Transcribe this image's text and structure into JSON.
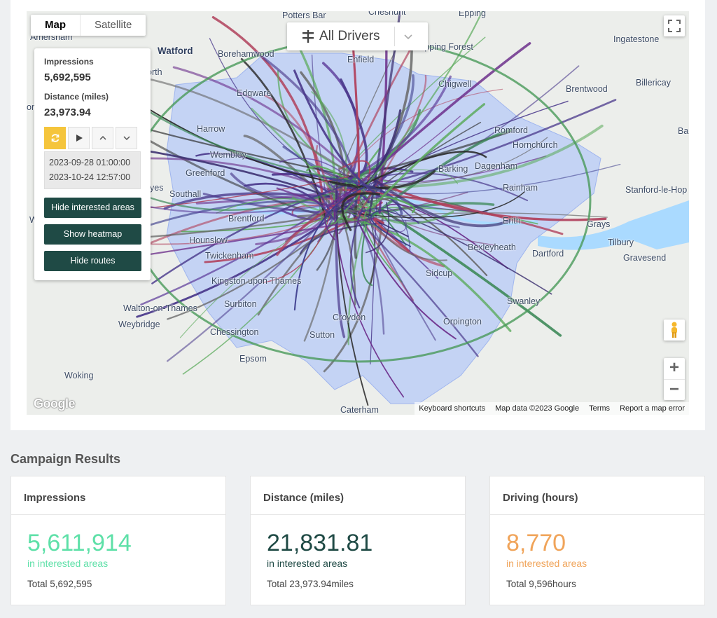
{
  "map": {
    "map_type_buttons": [
      "Map",
      "Satellite"
    ],
    "drivers_selector": "All Drivers",
    "places": [
      {
        "name": "Potters Bar",
        "big": false
      },
      {
        "name": "Cheshunt",
        "big": false
      },
      {
        "name": "Epping",
        "big": false
      },
      {
        "name": "Watford",
        "big": true
      },
      {
        "name": "Borehamwood",
        "big": false
      },
      {
        "name": "Enfield",
        "big": false
      },
      {
        "name": "Epping Forest",
        "big": false
      },
      {
        "name": "Ingatestone",
        "big": false
      },
      {
        "name": "Amersham",
        "big": false
      },
      {
        "name": "Edgware",
        "big": false
      },
      {
        "name": "Chigwell",
        "big": false
      },
      {
        "name": "Brentwood",
        "big": false
      },
      {
        "name": "Billericay",
        "big": false
      },
      {
        "name": "Harrow",
        "big": false
      },
      {
        "name": "Romford",
        "big": false
      },
      {
        "name": "Hornchurch",
        "big": false
      },
      {
        "name": "Wembley",
        "big": false
      },
      {
        "name": "Greenford",
        "big": false
      },
      {
        "name": "Barking",
        "big": false
      },
      {
        "name": "Dagenham",
        "big": false
      },
      {
        "name": "Southall",
        "big": false
      },
      {
        "name": "Rainham",
        "big": false
      },
      {
        "name": "Stanford-le-Hop",
        "big": false
      },
      {
        "name": "Brentford",
        "big": false
      },
      {
        "name": "Erith",
        "big": false
      },
      {
        "name": "Grays",
        "big": false
      },
      {
        "name": "Tilbury",
        "big": false
      },
      {
        "name": "Hounslow",
        "big": false
      },
      {
        "name": "Twickenham",
        "big": false
      },
      {
        "name": "Bexleyheath",
        "big": false
      },
      {
        "name": "Dartford",
        "big": false
      },
      {
        "name": "Gravesend",
        "big": false
      },
      {
        "name": "Kingston upon Thames",
        "big": false
      },
      {
        "name": "Sidcup",
        "big": false
      },
      {
        "name": "Surbiton",
        "big": false
      },
      {
        "name": "Swanley",
        "big": false
      },
      {
        "name": "Walton-on-Thames",
        "big": false
      },
      {
        "name": "Weybridge",
        "big": false
      },
      {
        "name": "Croydon",
        "big": false
      },
      {
        "name": "Orpington",
        "big": false
      },
      {
        "name": "Chessington",
        "big": false
      },
      {
        "name": "Sutton",
        "big": false
      },
      {
        "name": "Epsom",
        "big": false
      },
      {
        "name": "Woking",
        "big": false
      },
      {
        "name": "Caterham",
        "big": false
      },
      {
        "name": "Ba",
        "big": false
      },
      {
        "name": "orth",
        "big": false
      },
      {
        "name": "om",
        "big": false
      },
      {
        "name": "yes",
        "big": false
      },
      {
        "name": "Wa",
        "big": false
      }
    ],
    "google_logo": "Google",
    "attribution": [
      "Keyboard shortcuts",
      "Map data ©2023 Google",
      "Terms",
      "Report a map error"
    ],
    "icons": [
      "fullscreen-icon",
      "pegman-icon",
      "zoom-in-icon",
      "zoom-out-icon",
      "filter-icon",
      "chevron-down-icon"
    ]
  },
  "panel": {
    "impressions_label": "Impressions",
    "impressions_value": "5,692,595",
    "distance_label": "Distance (miles)",
    "distance_value": "23,973.94",
    "date_from": "2023-09-28 01:00:00",
    "date_to": "2023-10-24 12:57:00",
    "buttons": [
      "Hide interested areas",
      "Show heatmap",
      "Hide routes"
    ]
  },
  "results": {
    "title": "Campaign Results",
    "cards": [
      {
        "header": "Impressions",
        "value": "5,611,914",
        "sub": "in interested areas",
        "total": "Total 5,692,595",
        "color": "#5ee0a8"
      },
      {
        "header": "Distance (miles)",
        "value": "21,831.81",
        "sub": "in interested areas",
        "total": "Total 23,973.94miles",
        "color": "#1f4a45"
      },
      {
        "header": "Driving (hours)",
        "value": "8,770",
        "sub": "in interested areas",
        "total": "Total 9,596hours",
        "color": "#f0a45a"
      }
    ]
  }
}
